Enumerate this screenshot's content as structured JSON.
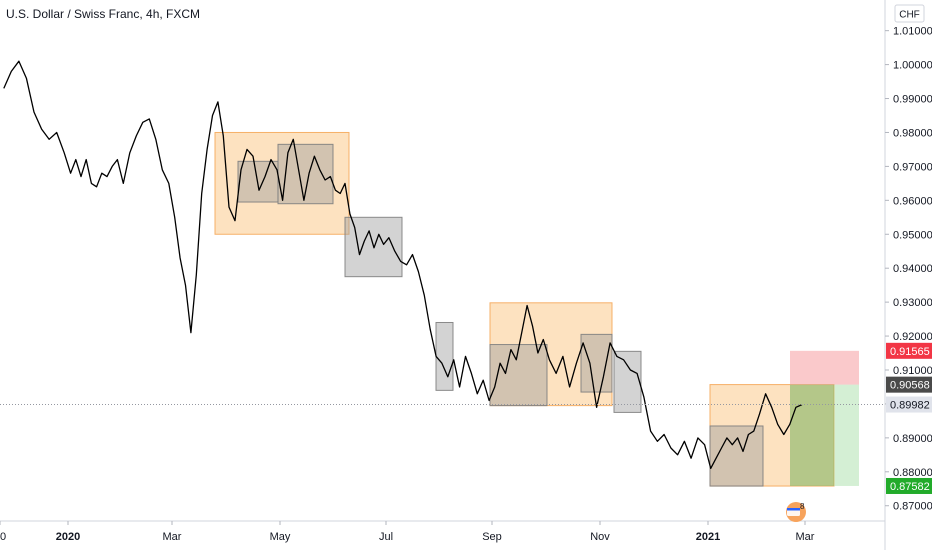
{
  "header": {
    "title": "U.S. Dollar / Swiss Franc, 4h, FXCM",
    "currency": "CHF"
  },
  "colors": {
    "price_line": "#000000",
    "orange_zone": "#FBCB8C",
    "gray_zone": "#9E9E9E",
    "stop_zone": "#F7A5A8",
    "target_zone": "#9FDB9F",
    "tag_red": "#F23645",
    "tag_dark": "#4A4A4A",
    "tag_light": "#E0E3EB",
    "tag_green": "#22AB2A"
  },
  "chart_data": {
    "type": "line",
    "title": "U.S. Dollar / Swiss Franc, 4h, FXCM",
    "xlabel": "",
    "ylabel": "",
    "ylim": [
      0.8655,
      1.0155
    ],
    "x_ticks": [
      "0",
      "2020",
      "Mar",
      "May",
      "Jul",
      "Sep",
      "Nov",
      "2021",
      "Mar"
    ],
    "y_ticks": [
      "1.01000",
      "1.00000",
      "0.99000",
      "0.98000",
      "0.97000",
      "0.96000",
      "0.95000",
      "0.94000",
      "0.93000",
      "0.92000",
      "0.91000",
      "0.90000",
      "0.89000",
      "0.88000",
      "0.87000"
    ],
    "series": [
      {
        "name": "",
        "points": [
          [
            "Dec 2019",
            0.993
          ],
          [
            "Dec 2019",
            0.998
          ],
          [
            "Dec 2019",
            1.001
          ],
          [
            "Dec 2019",
            0.996
          ],
          [
            "Dec 2019",
            0.986
          ],
          [
            "Dec 2019",
            0.981
          ],
          [
            "Dec 2019",
            0.978
          ],
          [
            "Dec 2019",
            0.98
          ],
          [
            "Dec 2019",
            0.974
          ],
          [
            "Jan 2020",
            0.968
          ],
          [
            "Jan 2020",
            0.972
          ],
          [
            "Jan 2020",
            0.967
          ],
          [
            "Jan 2020",
            0.972
          ],
          [
            "Jan 2020",
            0.965
          ],
          [
            "Jan 2020",
            0.964
          ],
          [
            "Jan 2020",
            0.968
          ],
          [
            "Jan 2020",
            0.967
          ],
          [
            "Jan 2020",
            0.97
          ],
          [
            "Jan 2020",
            0.972
          ],
          [
            "Feb 2020",
            0.965
          ],
          [
            "Feb 2020",
            0.974
          ],
          [
            "Feb 2020",
            0.979
          ],
          [
            "Feb 2020",
            0.983
          ],
          [
            "Feb 2020",
            0.984
          ],
          [
            "Feb 2020",
            0.978
          ],
          [
            "Feb 2020",
            0.969
          ],
          [
            "Feb 2020",
            0.965
          ],
          [
            "Mar 2020",
            0.955
          ],
          [
            "Mar 2020",
            0.943
          ],
          [
            "Mar 2020",
            0.935
          ],
          [
            "Mar 2020",
            0.921
          ],
          [
            "Mar 2020",
            0.938
          ],
          [
            "Mar 2020",
            0.962
          ],
          [
            "Mar 2020",
            0.975
          ],
          [
            "Mar 2020",
            0.985
          ],
          [
            "Mar 2020",
            0.989
          ],
          [
            "Mar 2020",
            0.979
          ],
          [
            "Apr 2020",
            0.958
          ],
          [
            "Apr 2020",
            0.954
          ],
          [
            "Apr 2020",
            0.969
          ],
          [
            "Apr 2020",
            0.975
          ],
          [
            "Apr 2020",
            0.973
          ],
          [
            "Apr 2020",
            0.963
          ],
          [
            "Apr 2020",
            0.967
          ],
          [
            "Apr 2020",
            0.972
          ],
          [
            "Apr 2020",
            0.969
          ],
          [
            "May 2020",
            0.96
          ],
          [
            "May 2020",
            0.974
          ],
          [
            "May 2020",
            0.978
          ],
          [
            "May 2020",
            0.969
          ],
          [
            "May 2020",
            0.96
          ],
          [
            "May 2020",
            0.968
          ],
          [
            "May 2020",
            0.973
          ],
          [
            "May 2020",
            0.969
          ],
          [
            "May 2020",
            0.966
          ],
          [
            "May 2020",
            0.967
          ],
          [
            "Jun 2020",
            0.963
          ],
          [
            "Jun 2020",
            0.962
          ],
          [
            "Jun 2020",
            0.965
          ],
          [
            "Jun 2020",
            0.956
          ],
          [
            "Jun 2020",
            0.952
          ],
          [
            "Jun 2020",
            0.944
          ],
          [
            "Jun 2020",
            0.948
          ],
          [
            "Jun 2020",
            0.951
          ],
          [
            "Jun 2020",
            0.946
          ],
          [
            "Jun 2020",
            0.95
          ],
          [
            "Jun 2020",
            0.947
          ],
          [
            "Jul 2020",
            0.949
          ],
          [
            "Jul 2020",
            0.945
          ],
          [
            "Jul 2020",
            0.942
          ],
          [
            "Jul 2020",
            0.941
          ],
          [
            "Jul 2020",
            0.944
          ],
          [
            "Jul 2020",
            0.939
          ],
          [
            "Jul 2020",
            0.932
          ],
          [
            "Jul 2020",
            0.922
          ],
          [
            "Jul 2020",
            0.914
          ],
          [
            "Aug 2020",
            0.912
          ],
          [
            "Aug 2020",
            0.908
          ],
          [
            "Aug 2020",
            0.913
          ],
          [
            "Aug 2020",
            0.905
          ],
          [
            "Aug 2020",
            0.914
          ],
          [
            "Aug 2020",
            0.909
          ],
          [
            "Aug 2020",
            0.903
          ],
          [
            "Aug 2020",
            0.907
          ],
          [
            "Aug 2020",
            0.901
          ],
          [
            "Sep 2020",
            0.905
          ],
          [
            "Sep 2020",
            0.912
          ],
          [
            "Sep 2020",
            0.909
          ],
          [
            "Sep 2020",
            0.916
          ],
          [
            "Sep 2020",
            0.913
          ],
          [
            "Sep 2020",
            0.921
          ],
          [
            "Sep 2020",
            0.929
          ],
          [
            "Sep 2020",
            0.923
          ],
          [
            "Sep 2020",
            0.915
          ],
          [
            "Sep 2020",
            0.919
          ],
          [
            "Oct 2020",
            0.913
          ],
          [
            "Oct 2020",
            0.909
          ],
          [
            "Oct 2020",
            0.914
          ],
          [
            "Oct 2020",
            0.905
          ],
          [
            "Oct 2020",
            0.912
          ],
          [
            "Oct 2020",
            0.918
          ],
          [
            "Oct 2020",
            0.912
          ],
          [
            "Oct 2020",
            0.899
          ],
          [
            "Nov 2020",
            0.908
          ],
          [
            "Nov 2020",
            0.918
          ],
          [
            "Nov 2020",
            0.914
          ],
          [
            "Nov 2020",
            0.913
          ],
          [
            "Nov 2020",
            0.91
          ],
          [
            "Nov 2020",
            0.909
          ],
          [
            "Nov 2020",
            0.902
          ],
          [
            "Nov 2020",
            0.892
          ],
          [
            "Dec 2020",
            0.889
          ],
          [
            "Dec 2020",
            0.891
          ],
          [
            "Dec 2020",
            0.887
          ],
          [
            "Dec 2020",
            0.885
          ],
          [
            "Dec 2020",
            0.889
          ],
          [
            "Dec 2020",
            0.884
          ],
          [
            "Dec 2020",
            0.89
          ],
          [
            "Dec 2020",
            0.888
          ],
          [
            "Jan 2021",
            0.881
          ],
          [
            "Jan 2021",
            0.884
          ],
          [
            "Jan 2021",
            0.887
          ],
          [
            "Jan 2021",
            0.89
          ],
          [
            "Jan 2021",
            0.888
          ],
          [
            "Jan 2021",
            0.89
          ],
          [
            "Jan 2021",
            0.886
          ],
          [
            "Jan 2021",
            0.891
          ],
          [
            "Jan 2021",
            0.892
          ],
          [
            "Feb 2021",
            0.897
          ],
          [
            "Feb 2021",
            0.903
          ],
          [
            "Feb 2021",
            0.899
          ],
          [
            "Feb 2021",
            0.894
          ],
          [
            "Feb 2021",
            0.891
          ],
          [
            "Feb 2021",
            0.894
          ],
          [
            "Feb 2021",
            0.899
          ],
          [
            "Feb 2021",
            0.8998
          ]
        ]
      }
    ],
    "zones": [
      {
        "kind": "orange",
        "from": "Mar 2020",
        "to": "Jun 2020",
        "top": 0.98,
        "bottom": 0.95
      },
      {
        "kind": "gray",
        "from": "Apr 2020",
        "to": "Apr 2020",
        "top": 0.9715,
        "bottom": 0.9595
      },
      {
        "kind": "gray",
        "from": "Apr 2020",
        "to": "May 2020",
        "top": 0.9765,
        "bottom": 0.959
      },
      {
        "kind": "gray",
        "from": "Jun 2020",
        "to": "Jun 2020",
        "top": 0.955,
        "bottom": 0.9375
      },
      {
        "kind": "gray",
        "from": "Jul 2020",
        "to": "Aug 2020",
        "top": 0.924,
        "bottom": 0.904
      },
      {
        "kind": "orange",
        "from": "Sep 2020",
        "to": "Oct 2020",
        "top": 0.9298,
        "bottom": 0.8995
      },
      {
        "kind": "gray",
        "from": "Sep 2020",
        "to": "Sep 2020",
        "top": 0.9175,
        "bottom": 0.8995
      },
      {
        "kind": "gray",
        "from": "Oct 2020",
        "to": "Oct 2020",
        "top": 0.9205,
        "bottom": 0.9035
      },
      {
        "kind": "gray",
        "from": "Nov 2020",
        "to": "Nov 2020",
        "top": 0.9155,
        "bottom": 0.8975
      },
      {
        "kind": "orange",
        "from": "Jan 2021",
        "to": "Feb 2021",
        "top": 0.9057,
        "bottom": 0.8758
      },
      {
        "kind": "gray",
        "from": "Jan 2021",
        "to": "Feb 2021",
        "top": 0.8935,
        "bottom": 0.8758
      },
      {
        "kind": "stop",
        "from": "Feb 2021",
        "to": "Mar 2021",
        "top": 0.91565,
        "bottom": 0.90568
      },
      {
        "kind": "target",
        "from": "Feb 2021",
        "to": "Mar 2021",
        "top": 0.90568,
        "bottom": 0.87582
      },
      {
        "kind": "target-overlap",
        "from": "Feb 2021",
        "to": "Mar 2021",
        "top": 0.90568,
        "bottom": 0.87582
      }
    ],
    "price_tags": [
      {
        "label": "0.91565",
        "value": 0.91565,
        "style": "red"
      },
      {
        "label": "0.90568",
        "value": 0.90568,
        "style": "dark"
      },
      {
        "label": "0.89982",
        "value": 0.89982,
        "style": "light"
      },
      {
        "label": "0.87582",
        "value": 0.87582,
        "style": "green"
      }
    ],
    "grid": false,
    "legend": "none",
    "annotation_badge": "8"
  }
}
